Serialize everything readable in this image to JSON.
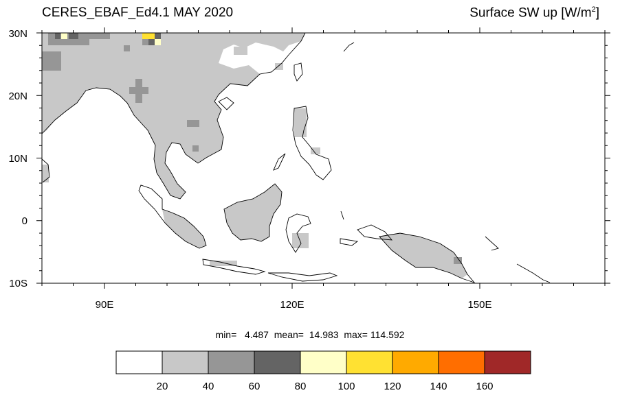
{
  "title_left": "CERES_EBAF_Ed4.1 MAY 2020",
  "title_right": "Surface SW up [W/m",
  "title_right_sup": "2",
  "title_right_end": "]",
  "map": {
    "lat_labels": [
      "30N",
      "20N",
      "10N",
      "0",
      "10S"
    ],
    "lon_labels": [
      "90E",
      "120E",
      "150E"
    ],
    "lon_range": [
      80,
      170
    ],
    "lat_range": [
      -10,
      30
    ]
  },
  "stats": {
    "min_label": "min=",
    "min_value": "4.487",
    "mean_label": "mean=",
    "mean_value": "14.983",
    "max_label": "max=",
    "max_value": "114.592"
  },
  "colorbar": {
    "colors": [
      "#ffffff",
      "#c8c8c8",
      "#969696",
      "#646464",
      "#ffffc8",
      "#ffe132",
      "#ffaa00",
      "#ff6e00",
      "#a02828"
    ],
    "tick_labels": [
      "20",
      "40",
      "60",
      "80",
      "100",
      "120",
      "140",
      "160"
    ]
  }
}
